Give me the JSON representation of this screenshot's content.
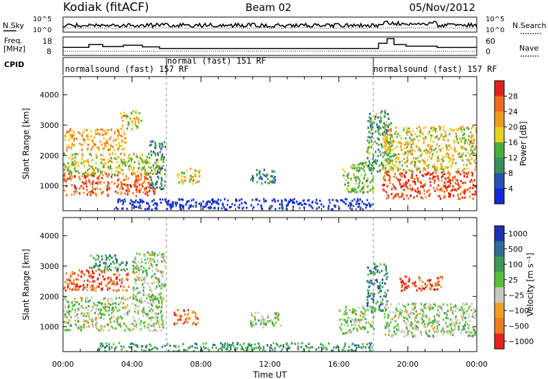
{
  "header": {
    "station": "Kodiak (fitACF)",
    "beam": "Beam 02",
    "date": "05/Nov/2012"
  },
  "top_panels": {
    "nsky_label": "N.Sky",
    "nsearch_label": "N.Search",
    "log_ticks": [
      "10^5",
      "10^0"
    ],
    "freq_label": "Freq.",
    "freq_unit": "[MHz]",
    "freq_ticks": [
      "18",
      "8"
    ],
    "nave_label": "Nave",
    "nave_ticks": [
      "60",
      "0"
    ],
    "cpid_label": "CPID",
    "cpid_segments": [
      {
        "text": "normalsound (fast) 157 RF",
        "start_hour": 0.0,
        "end_hour": 6.0
      },
      {
        "text": "normal (fast) 151 RF",
        "start_hour": 6.0,
        "end_hour": 18.0
      },
      {
        "text": "normalsound (fast) 157 RF",
        "start_hour": 18.0,
        "end_hour": 24.0
      }
    ],
    "freq_steps": [
      {
        "from": 0.0,
        "to": 1.5,
        "level": 0.45
      },
      {
        "from": 1.5,
        "to": 2.3,
        "level": 0.62
      },
      {
        "from": 2.3,
        "to": 3.5,
        "level": 0.5
      },
      {
        "from": 3.5,
        "to": 4.6,
        "level": 0.58
      },
      {
        "from": 4.6,
        "to": 5.6,
        "level": 0.48
      },
      {
        "from": 5.6,
        "to": 18.3,
        "level": 0.38
      },
      {
        "from": 18.3,
        "to": 18.8,
        "level": 0.7
      },
      {
        "from": 18.8,
        "to": 19.2,
        "level": 0.98
      },
      {
        "from": 19.2,
        "to": 19.9,
        "level": 0.62
      },
      {
        "from": 19.9,
        "to": 21.7,
        "level": 0.52
      },
      {
        "from": 21.7,
        "to": 24.0,
        "level": 0.44
      }
    ]
  },
  "chart_data": [
    {
      "type": "heatmap",
      "name": "power",
      "ylabel": "Slant Range [km]",
      "yticks": [
        1000,
        2000,
        3000,
        4000
      ],
      "ylim": [
        180,
        4600
      ],
      "colorbar_label": "Power [dB]",
      "colorbar_ticks": [
        4,
        8,
        12,
        16,
        20,
        24,
        28
      ],
      "colorbar_range": [
        0,
        32
      ],
      "colors": [
        "#1428dc",
        "#2a50b8",
        "#3a8f5a",
        "#46b03c",
        "#e8d21e",
        "#f09a20",
        "#f06a1c",
        "#e32020"
      ],
      "regions": [
        {
          "t": [
            0.0,
            5.3
          ],
          "r": [
            700,
            1450
          ],
          "level": 0.82
        },
        {
          "t": [
            0.0,
            5.8
          ],
          "r": [
            1400,
            2100
          ],
          "level": 0.55
        },
        {
          "t": [
            0.0,
            3.6
          ],
          "r": [
            2200,
            2900
          ],
          "level": 0.68
        },
        {
          "t": [
            3.3,
            4.5
          ],
          "r": [
            2900,
            3500
          ],
          "level": 0.6
        },
        {
          "t": [
            5.0,
            5.9
          ],
          "r": [
            900,
            2500
          ],
          "level": 0.3
        },
        {
          "t": [
            6.5,
            7.9
          ],
          "r": [
            1100,
            1600
          ],
          "level": 0.55
        },
        {
          "t": [
            10.8,
            12.3
          ],
          "r": [
            1100,
            1600
          ],
          "level": 0.3
        },
        {
          "t": [
            16.2,
            18.0
          ],
          "r": [
            800,
            1800
          ],
          "level": 0.45
        },
        {
          "t": [
            17.6,
            19.0
          ],
          "r": [
            1500,
            3500
          ],
          "level": 0.35
        },
        {
          "t": [
            18.5,
            24.0
          ],
          "r": [
            600,
            1500
          ],
          "level": 0.88
        },
        {
          "t": [
            18.5,
            24.0
          ],
          "r": [
            1500,
            3000
          ],
          "level": 0.58
        },
        {
          "t": [
            3.0,
            18.0
          ],
          "r": [
            250,
            600
          ],
          "level": 0.08
        }
      ]
    },
    {
      "type": "heatmap",
      "name": "velocity",
      "ylabel": "Slant Range [km]",
      "yticks": [
        1000,
        2000,
        3000,
        4000
      ],
      "ylim": [
        180,
        4600
      ],
      "xticks": [
        "00:00",
        "04:00",
        "08:00",
        "12:00",
        "16:00",
        "20:00",
        "00:00"
      ],
      "xlim": [
        0,
        24
      ],
      "xlabel": "Time UT",
      "colorbar_label": "Velocity [m s⁻¹]",
      "colorbar_ticks": [
        "1000",
        "500",
        "100",
        "25",
        "−25",
        "−100",
        "−500",
        "−1000"
      ],
      "colors": [
        "#1e2fb4",
        "#2e6e96",
        "#3c9a55",
        "#58c23a",
        "#c8c8c0",
        "#f0a020",
        "#f07a20",
        "#e82020"
      ],
      "regions": [
        {
          "t": [
            0.0,
            3.8
          ],
          "r": [
            2200,
            2900
          ],
          "level": 0.85
        },
        {
          "t": [
            1.5,
            3.7
          ],
          "r": [
            2900,
            3400
          ],
          "level": 0.25
        },
        {
          "t": [
            0.0,
            5.8
          ],
          "r": [
            900,
            2000
          ],
          "level": 0.5
        },
        {
          "t": [
            4.0,
            5.9
          ],
          "r": [
            1800,
            3500
          ],
          "level": 0.48
        },
        {
          "t": [
            6.4,
            7.8
          ],
          "r": [
            1100,
            1600
          ],
          "level": 0.8
        },
        {
          "t": [
            10.7,
            12.6
          ],
          "r": [
            1000,
            1500
          ],
          "level": 0.5
        },
        {
          "t": [
            16.0,
            18.0
          ],
          "r": [
            800,
            1700
          ],
          "level": 0.5
        },
        {
          "t": [
            17.6,
            18.8
          ],
          "r": [
            1500,
            3100
          ],
          "level": 0.25
        },
        {
          "t": [
            18.6,
            24.0
          ],
          "r": [
            700,
            1800
          ],
          "level": 0.5
        },
        {
          "t": [
            19.5,
            22.0
          ],
          "r": [
            2200,
            2700
          ],
          "level": 0.88
        },
        {
          "t": [
            2.0,
            18.0
          ],
          "r": [
            180,
            500
          ],
          "level": 0.32
        }
      ]
    }
  ]
}
